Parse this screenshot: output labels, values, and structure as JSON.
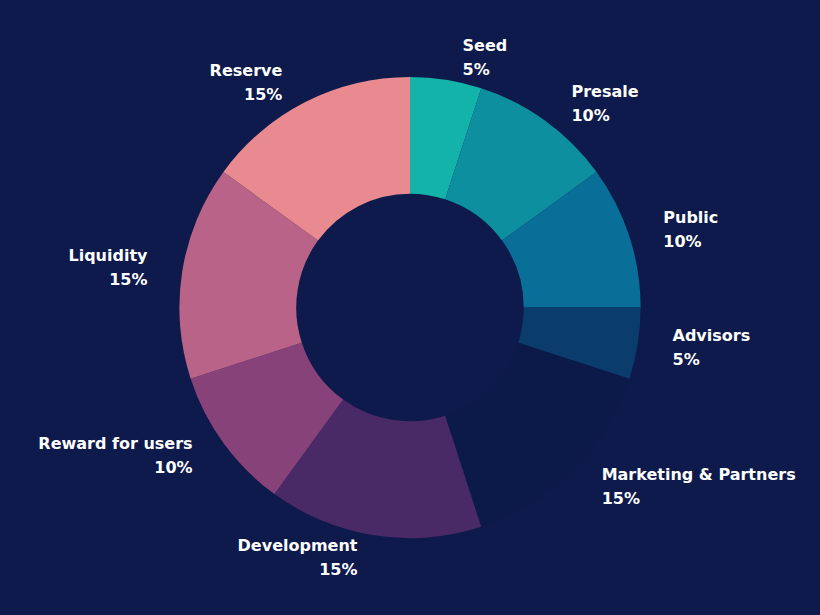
{
  "chart_data": {
    "type": "pie",
    "categories": [
      "Seed",
      "Presale",
      "Public",
      "Advisors",
      "Marketing & Partners",
      "Development",
      "Reward for users",
      "Liquidity",
      "Reserve"
    ],
    "values": [
      5,
      10,
      10,
      5,
      15,
      15,
      10,
      15,
      15
    ],
    "value_labels": [
      "5%",
      "10%",
      "10%",
      "5%",
      "15%",
      "15%",
      "10%",
      "15%",
      "15%"
    ],
    "colors": [
      "#14b3aa",
      "#0e8fa0",
      "#0a6f98",
      "#0a3c6c",
      "#0c1a4a",
      "#4a2a66",
      "#874279",
      "#b86387",
      "#e88a8f"
    ],
    "data_labels": true
  }
}
